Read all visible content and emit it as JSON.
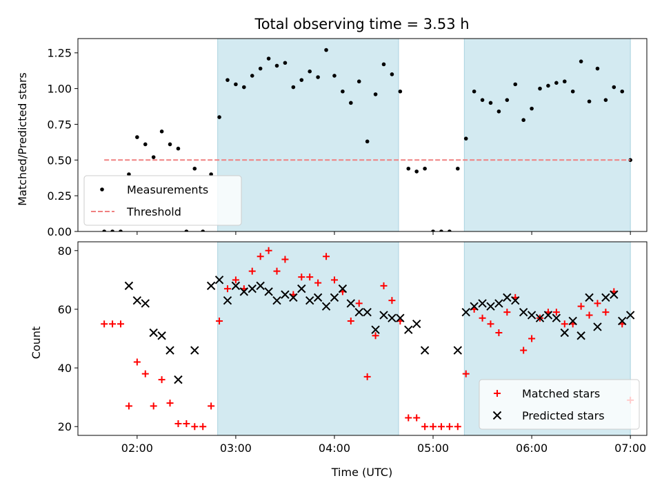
{
  "chart_data": {
    "type": "scatter",
    "title": "Total observing time = 3.53 h",
    "xlabel": "Time (UTC)",
    "x_range": [
      "01:24",
      "07:10"
    ],
    "x_ticks": [
      "02:00",
      "03:00",
      "04:00",
      "05:00",
      "06:00",
      "07:00"
    ],
    "shaded_intervals": [
      [
        "02:49",
        "04:39"
      ],
      [
        "05:19",
        "07:00"
      ]
    ],
    "shade_color": "#d3eaf1",
    "grid": false,
    "panels": [
      {
        "ylabel": "Matched/Predicted stars",
        "ylim": [
          0,
          1.35
        ],
        "y_ticks": [
          "0.00",
          "0.25",
          "0.50",
          "0.75",
          "1.00",
          "1.25"
        ],
        "legend_position": "lower-left",
        "series": [
          {
            "name": "Measurements",
            "marker": "dot",
            "color": "#000000",
            "x": [
              "01:40",
              "01:45",
              "01:50",
              "01:55",
              "02:00",
              "02:05",
              "02:10",
              "02:15",
              "02:20",
              "02:25",
              "02:30",
              "02:35",
              "02:40",
              "02:45",
              "02:50",
              "02:55",
              "03:00",
              "03:05",
              "03:10",
              "03:15",
              "03:20",
              "03:25",
              "03:30",
              "03:35",
              "03:40",
              "03:45",
              "03:50",
              "03:55",
              "04:00",
              "04:05",
              "04:10",
              "04:15",
              "04:20",
              "04:25",
              "04:30",
              "04:35",
              "04:40",
              "04:45",
              "04:50",
              "04:55",
              "05:00",
              "05:05",
              "05:10",
              "05:15",
              "05:20",
              "05:25",
              "05:30",
              "05:35",
              "05:40",
              "05:45",
              "05:50",
              "05:55",
              "06:00",
              "06:05",
              "06:10",
              "06:15",
              "06:20",
              "06:25",
              "06:30",
              "06:35",
              "06:40",
              "06:45",
              "06:50",
              "06:55",
              "07:00"
            ],
            "y": [
              0.0,
              0.0,
              0.0,
              0.4,
              0.66,
              0.61,
              0.52,
              0.7,
              0.61,
              0.58,
              0.0,
              0.44,
              0.0,
              0.4,
              0.8,
              1.06,
              1.03,
              1.01,
              1.09,
              1.14,
              1.21,
              1.16,
              1.18,
              1.01,
              1.06,
              1.12,
              1.08,
              1.27,
              1.09,
              0.98,
              0.9,
              1.05,
              0.63,
              0.96,
              1.17,
              1.1,
              0.98,
              0.44,
              0.42,
              0.44,
              0.0,
              0.0,
              0.0,
              0.44,
              0.65,
              0.98,
              0.92,
              0.9,
              0.84,
              0.92,
              1.03,
              0.78,
              0.86,
              1.0,
              1.02,
              1.04,
              1.05,
              0.98,
              1.19,
              0.91,
              1.14,
              0.92,
              1.01,
              0.98,
              0.5
            ]
          },
          {
            "name": "Threshold",
            "line_style": "dashed",
            "color": "#f08080",
            "x": [
              "01:40",
              "07:00"
            ],
            "y": [
              0.5,
              0.5
            ]
          }
        ]
      },
      {
        "ylabel": "Count",
        "ylim": [
          17,
          83
        ],
        "y_ticks": [
          "20",
          "40",
          "60",
          "80"
        ],
        "legend_position": "lower-right",
        "series": [
          {
            "name": "Matched stars",
            "marker": "plus",
            "color": "#ff0000",
            "x": [
              "01:40",
              "01:45",
              "01:50",
              "01:55",
              "02:00",
              "02:05",
              "02:10",
              "02:15",
              "02:20",
              "02:25",
              "02:30",
              "02:35",
              "02:40",
              "02:45",
              "02:50",
              "02:55",
              "03:00",
              "03:05",
              "03:10",
              "03:15",
              "03:20",
              "03:25",
              "03:30",
              "03:35",
              "03:40",
              "03:45",
              "03:50",
              "03:55",
              "04:00",
              "04:05",
              "04:10",
              "04:15",
              "04:20",
              "04:25",
              "04:30",
              "04:35",
              "04:40",
              "04:45",
              "04:50",
              "04:55",
              "05:00",
              "05:05",
              "05:10",
              "05:15",
              "05:20",
              "05:25",
              "05:30",
              "05:35",
              "05:40",
              "05:45",
              "05:50",
              "05:55",
              "06:00",
              "06:05",
              "06:10",
              "06:15",
              "06:20",
              "06:25",
              "06:30",
              "06:35",
              "06:40",
              "06:45",
              "06:50",
              "06:55",
              "07:00"
            ],
            "y": [
              55,
              55,
              55,
              27,
              42,
              38,
              27,
              36,
              28,
              21,
              21,
              20,
              20,
              27,
              56,
              67,
              70,
              67,
              73,
              78,
              80,
              73,
              77,
              65,
              71,
              71,
              69,
              78,
              70,
              66,
              56,
              62,
              37,
              51,
              68,
              63,
              56,
              23,
              23,
              20,
              20,
              20,
              20,
              20,
              38,
              60,
              57,
              55,
              52,
              59,
              64,
              46,
              50,
              57,
              59,
              59,
              55,
              55,
              61,
              58,
              62,
              59,
              66,
              55,
              29
            ]
          },
          {
            "name": "Predicted stars",
            "marker": "x",
            "color": "#000000",
            "x": [
              "01:55",
              "02:00",
              "02:05",
              "02:10",
              "02:15",
              "02:20",
              "02:25",
              "02:35",
              "02:45",
              "02:50",
              "02:55",
              "03:00",
              "03:05",
              "03:10",
              "03:15",
              "03:20",
              "03:25",
              "03:30",
              "03:35",
              "03:40",
              "03:45",
              "03:50",
              "03:55",
              "04:00",
              "04:05",
              "04:10",
              "04:15",
              "04:20",
              "04:25",
              "04:30",
              "04:35",
              "04:40",
              "04:45",
              "04:50",
              "04:55",
              "05:15",
              "05:20",
              "05:25",
              "05:30",
              "05:35",
              "05:40",
              "05:45",
              "05:50",
              "05:55",
              "06:00",
              "06:05",
              "06:10",
              "06:15",
              "06:20",
              "06:25",
              "06:30",
              "06:35",
              "06:40",
              "06:45",
              "06:50",
              "06:55",
              "07:00"
            ],
            "y": [
              68,
              63,
              62,
              52,
              51,
              46,
              36,
              46,
              68,
              70,
              63,
              68,
              66,
              67,
              68,
              66,
              63,
              65,
              64,
              67,
              63,
              64,
              61,
              64,
              67,
              62,
              59,
              59,
              53,
              58,
              57,
              57,
              53,
              55,
              46,
              46,
              59,
              61,
              62,
              61,
              62,
              64,
              63,
              59,
              58,
              57,
              58,
              57,
              52,
              56,
              51,
              64,
              54,
              64,
              65,
              56,
              58
            ]
          }
        ]
      }
    ]
  }
}
